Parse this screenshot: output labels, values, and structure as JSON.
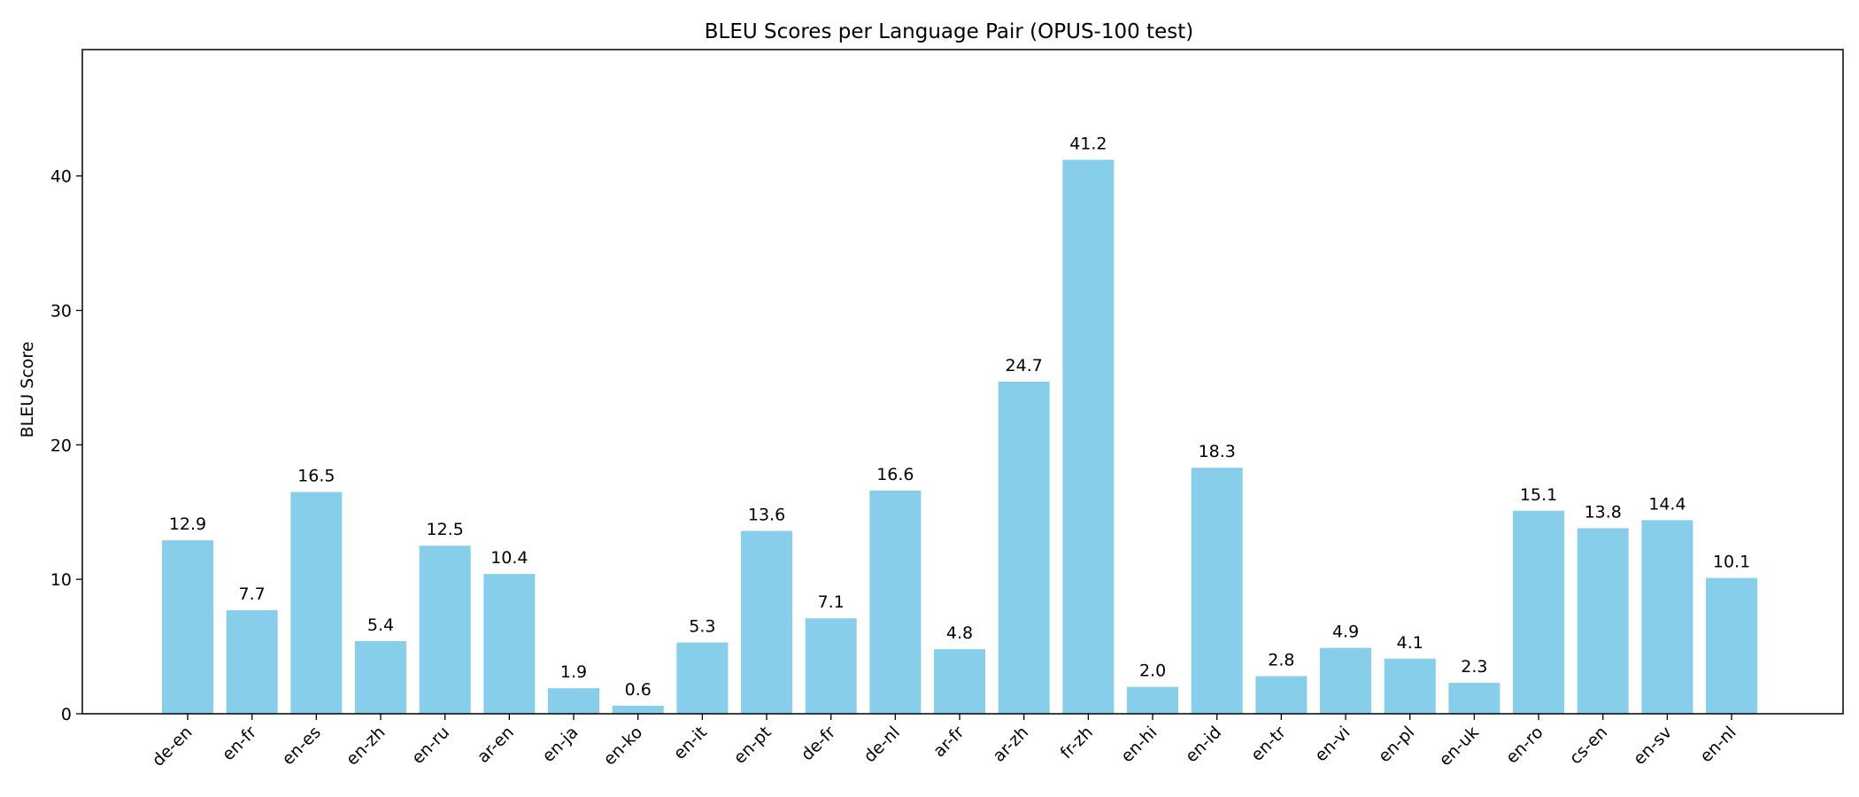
{
  "chart_data": {
    "type": "bar",
    "title": "BLEU Scores per Language Pair (OPUS-100 test)",
    "xlabel": "",
    "ylabel": "BLEU Score",
    "categories": [
      "de-en",
      "en-fr",
      "en-es",
      "en-zh",
      "en-ru",
      "ar-en",
      "en-ja",
      "en-ko",
      "en-it",
      "en-pt",
      "de-fr",
      "de-nl",
      "ar-fr",
      "ar-zh",
      "fr-zh",
      "en-hi",
      "en-id",
      "en-tr",
      "en-vi",
      "en-pl",
      "en-uk",
      "en-ro",
      "cs-en",
      "en-sv",
      "en-nl"
    ],
    "values": [
      12.9,
      7.7,
      16.5,
      5.4,
      12.5,
      10.4,
      1.9,
      0.6,
      5.3,
      13.6,
      7.1,
      16.6,
      4.8,
      24.7,
      41.2,
      2.0,
      18.3,
      2.8,
      4.9,
      4.1,
      2.3,
      15.1,
      13.8,
      14.4,
      10.1
    ],
    "value_labels": [
      "12.9",
      "7.7",
      "16.5",
      "5.4",
      "12.5",
      "10.4",
      "1.9",
      "0.6",
      "5.3",
      "13.6",
      "7.1",
      "16.6",
      "4.8",
      "24.7",
      "41.2",
      "2.0",
      "18.3",
      "2.8",
      "4.9",
      "4.1",
      "2.3",
      "15.1",
      "13.8",
      "14.4",
      "10.1"
    ],
    "ylim": [
      0,
      49.4
    ],
    "yticks": [
      0,
      10,
      20,
      30,
      40
    ],
    "ytick_labels": [
      "0",
      "10",
      "20",
      "30",
      "40"
    ],
    "bar_color": "#87ceeb",
    "grid": false,
    "legend": "none"
  }
}
